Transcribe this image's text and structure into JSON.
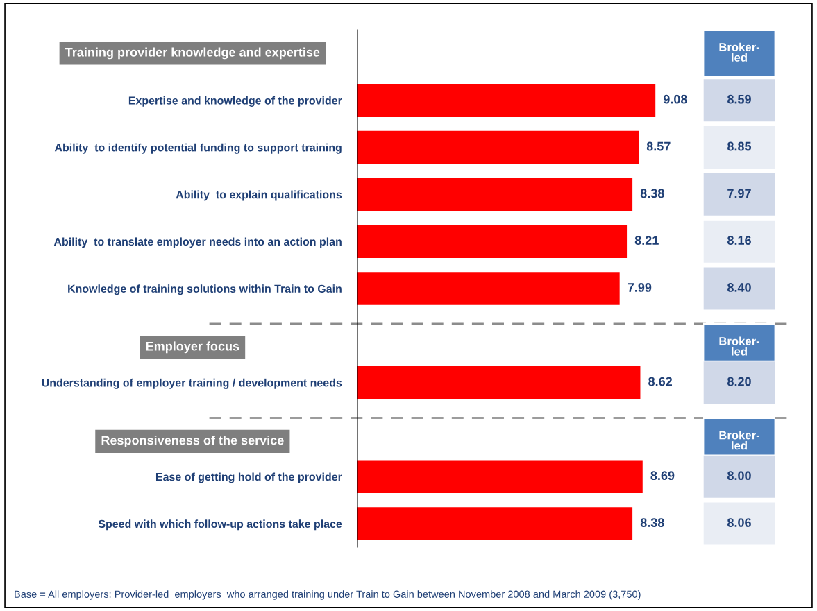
{
  "chart_data": [
    {
      "type": "bar",
      "orientation": "horizontal",
      "categories": [
        null,
        "Expertise and knowledge of the provider",
        "Ability  to identify potential funding to support training",
        "Ability  to explain qualifications",
        "Ability  to translate employer needs into an action plan",
        "Knowledge of training solutions within Train to Gain",
        null,
        "Understanding of employer training / development needs",
        null,
        "Ease of getting hold of the provider",
        "Speed with which follow-up actions take place"
      ],
      "values": [
        null,
        9.08,
        8.57,
        8.38,
        8.21,
        7.99,
        null,
        8.62,
        null,
        8.69,
        8.38
      ],
      "color": "#ff0000",
      "data_labels": true,
      "grid": false,
      "annotations": [
        "Training provider knowledge and expertise",
        "Employer focus",
        "Responsiveness of the service",
        "Base = All employers: Provider-led  employers  who arranged training under Train to Gain between November 2008 and March 2009 (3,750)"
      ]
    },
    {
      "type": "other",
      "title": "Broker-\nled",
      "values": [
        null,
        8.59,
        8.85,
        7.97,
        8.16,
        8.4,
        null,
        8.2,
        null,
        8.0,
        8.06
      ],
      "value_labels": [
        null,
        "8.59",
        "8.85",
        "7.97",
        "8.16",
        "8.40",
        null,
        "8.20",
        null,
        "8.00",
        "8.06"
      ],
      "colors": [
        null,
        "#d0d8e8",
        "#e9edf4",
        "#d0d8e8",
        "#e9edf4",
        "#d0d8e8",
        null,
        "#d0d8e8",
        null,
        "#d0d8e8",
        "#e9edf4"
      ],
      "color": "#4f81bd"
    }
  ]
}
